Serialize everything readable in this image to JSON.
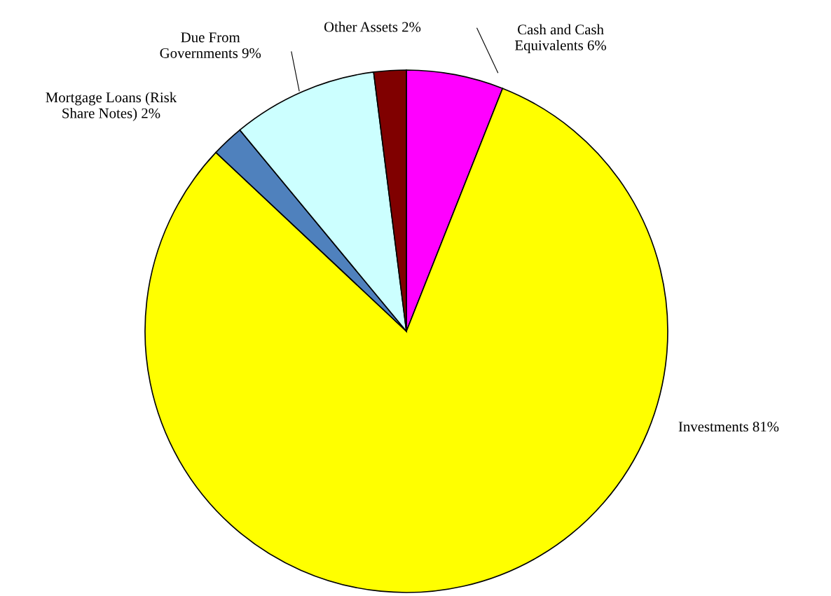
{
  "chart_data": {
    "type": "pie",
    "categories": [
      "Cash and Cash\nEquivalents",
      "Investments",
      "Mortgage Loans (Risk\nShare Notes)",
      "Due From\nGovernments",
      "Other Assets"
    ],
    "values": [
      6,
      81,
      2,
      9,
      2
    ],
    "value_labels": [
      "6%",
      "81%",
      "2%",
      "9%",
      "2%"
    ],
    "colors": [
      "#ff00ff",
      "#ffff00",
      "#4f81bd",
      "#ccffff",
      "#800000"
    ],
    "legend": false
  }
}
